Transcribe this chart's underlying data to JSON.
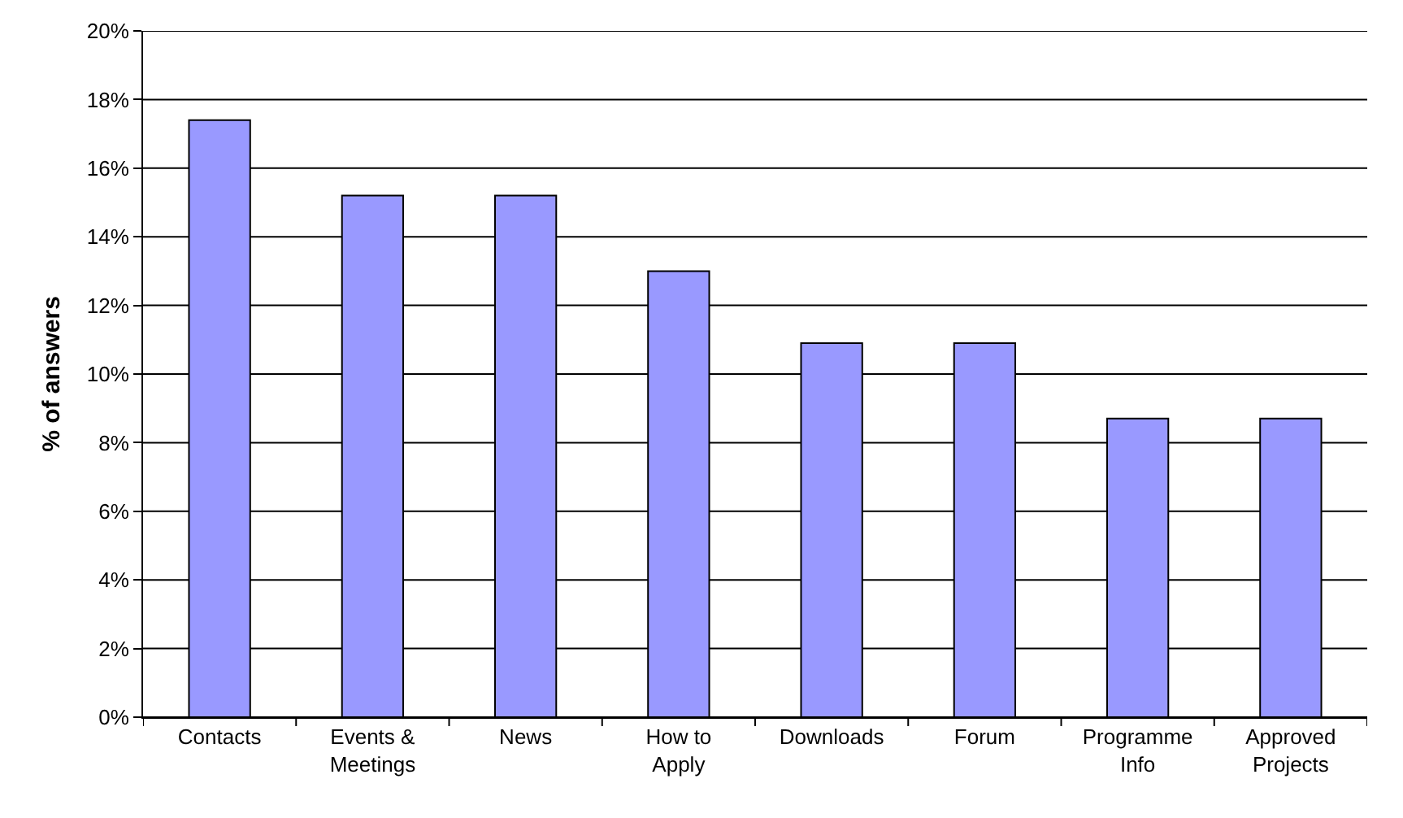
{
  "chart_data": {
    "type": "bar",
    "ylabel": "% of answers",
    "categories": [
      "Contacts",
      "Events &\nMeetings",
      "News",
      "How to\nApply",
      "Downloads",
      "Forum",
      "Programme\nInfo",
      "Approved\nProjects"
    ],
    "values": [
      17.4,
      15.2,
      15.2,
      13.0,
      10.9,
      10.9,
      8.7,
      8.7
    ],
    "color": "#9999ff",
    "ylim": [
      0,
      20
    ],
    "yticks": [
      {
        "value": 0,
        "label": "0%"
      },
      {
        "value": 2,
        "label": "2%"
      },
      {
        "value": 4,
        "label": "4%"
      },
      {
        "value": 6,
        "label": "6%"
      },
      {
        "value": 8,
        "label": "8%"
      },
      {
        "value": 10,
        "label": "10%"
      },
      {
        "value": 12,
        "label": "12%"
      },
      {
        "value": 14,
        "label": "14%"
      },
      {
        "value": 16,
        "label": "16%"
      },
      {
        "value": 18,
        "label": "18%"
      },
      {
        "value": 20,
        "label": "20%"
      }
    ],
    "grid": "y"
  }
}
